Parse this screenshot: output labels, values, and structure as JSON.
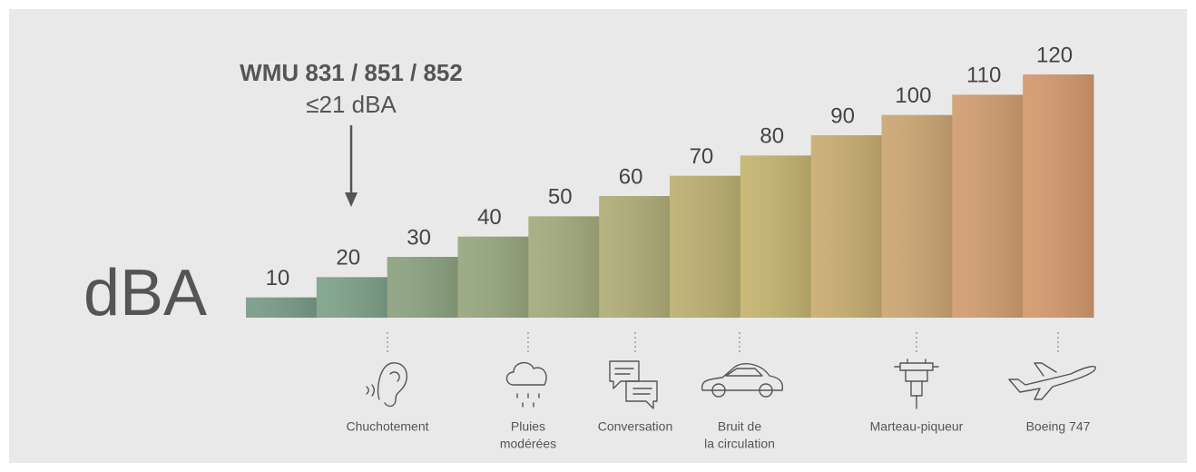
{
  "chart_data": {
    "type": "bar",
    "axis_label": "dBA",
    "annotation": {
      "title": "WMU 831 / 851 / 852",
      "subtitle": "≤21 dBA"
    },
    "categories": [
      null,
      null,
      null,
      null,
      null,
      null,
      null,
      null,
      null,
      null,
      null,
      null
    ],
    "values": [
      10,
      20,
      30,
      40,
      50,
      60,
      70,
      80,
      90,
      100,
      110,
      120
    ],
    "colors": [
      "#7b9c8a",
      "#7fa38a",
      "#8ea382",
      "#98a881",
      "#a5ac7e",
      "#b1ad79",
      "#bcb173",
      "#c5b571",
      "#c9ae72",
      "#cda775",
      "#d29e72",
      "#d49a6f"
    ],
    "ylim": [
      0,
      120
    ],
    "examples": [
      {
        "lines": [
          "Chuchotement"
        ]
      },
      {
        "lines": [
          "Pluies",
          "modérées"
        ]
      },
      {
        "lines": [
          "Conversation"
        ]
      },
      {
        "lines": [
          "Bruit de",
          "la circulation"
        ]
      },
      {
        "lines": [
          "Marteau-piqueur"
        ]
      },
      {
        "lines": [
          "Boeing 747"
        ]
      }
    ]
  }
}
